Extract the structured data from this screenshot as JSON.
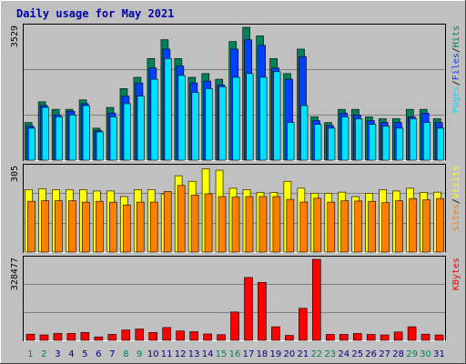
{
  "title": "Daily usage for May 2021",
  "days": [
    "1",
    "2",
    "3",
    "4",
    "5",
    "6",
    "7",
    "8",
    "9",
    "10",
    "11",
    "12",
    "13",
    "14",
    "15",
    "16",
    "17",
    "18",
    "19",
    "20",
    "21",
    "22",
    "23",
    "24",
    "25",
    "26",
    "27",
    "28",
    "29",
    "30",
    "31"
  ],
  "weekend_days": [
    "1",
    "2",
    "8",
    "9",
    "15",
    "16",
    "22",
    "23",
    "29",
    "30"
  ],
  "colors": {
    "background": "#c0c0c0",
    "title": "#0000aa",
    "hits": "#00805c",
    "files": "#0040ff",
    "pages": "#00e0ff",
    "visits": "#ffff00",
    "sites": "#ff8000",
    "kbytes": "#ff0000",
    "weekend_label": "#00805c",
    "weekday_label": "#000080",
    "grid": "#808080"
  },
  "chart_data": [
    {
      "type": "bar",
      "name": "hits-files-pages",
      "axis_max_label": "3529",
      "ylim": [
        0,
        3529
      ],
      "legend": [
        "Pages",
        "/",
        "Files",
        "/",
        "Hits"
      ],
      "series": [
        {
          "name": "Hits",
          "values": [
            1000,
            1550,
            1350,
            1350,
            1600,
            850,
            1400,
            1900,
            2200,
            2700,
            3200,
            2700,
            2200,
            2300,
            2150,
            3150,
            3529,
            3300,
            2700,
            2300,
            2950,
            1150,
            1000,
            1350,
            1350,
            1150,
            1100,
            1100,
            1350,
            1350,
            1100
          ]
        },
        {
          "name": "Files",
          "values": [
            900,
            1450,
            1200,
            1300,
            1500,
            780,
            1250,
            1700,
            2050,
            2450,
            2950,
            2500,
            2050,
            2100,
            2000,
            2950,
            3200,
            3050,
            2450,
            2150,
            2750,
            1050,
            920,
            1250,
            1200,
            1050,
            1000,
            1000,
            1150,
            1250,
            1000
          ]
        },
        {
          "name": "Pages",
          "values": [
            850,
            1400,
            1150,
            1200,
            1450,
            750,
            1150,
            1500,
            1700,
            2150,
            2700,
            2250,
            1800,
            1900,
            1950,
            2200,
            2300,
            2200,
            2350,
            1000,
            1450,
            950,
            850,
            1150,
            1100,
            950,
            900,
            850,
            1100,
            1000,
            850
          ]
        }
      ]
    },
    {
      "type": "bar",
      "name": "visits-sites",
      "axis_max_label": "305",
      "ylim": [
        0,
        305
      ],
      "legend": [
        "Sites",
        "/",
        "Visits"
      ],
      "series": [
        {
          "name": "Visits",
          "values": [
            225,
            228,
            225,
            225,
            225,
            220,
            220,
            200,
            225,
            225,
            210,
            275,
            255,
            300,
            295,
            230,
            225,
            215,
            215,
            255,
            230,
            212,
            212,
            216,
            200,
            212,
            225,
            220,
            230,
            215,
            216
          ]
        },
        {
          "name": "Sites",
          "values": [
            183,
            185,
            185,
            185,
            180,
            183,
            180,
            170,
            180,
            180,
            218,
            240,
            205,
            210,
            200,
            198,
            200,
            200,
            200,
            190,
            180,
            194,
            180,
            185,
            184,
            183,
            178,
            185,
            193,
            188,
            193
          ]
        }
      ]
    },
    {
      "type": "bar",
      "name": "kbytes",
      "axis_max_label": "328477",
      "ylim": [
        0,
        328477
      ],
      "legend": [
        "KBytes"
      ],
      "series": [
        {
          "name": "KBytes",
          "values": [
            25000,
            22000,
            28000,
            28000,
            32000,
            14000,
            24000,
            42000,
            46000,
            32000,
            52000,
            38000,
            35000,
            26000,
            23000,
            115000,
            255000,
            235000,
            55000,
            20000,
            130000,
            328477,
            24000,
            24000,
            28000,
            24000,
            22000,
            34000,
            55000,
            25000,
            22000
          ]
        }
      ]
    }
  ]
}
